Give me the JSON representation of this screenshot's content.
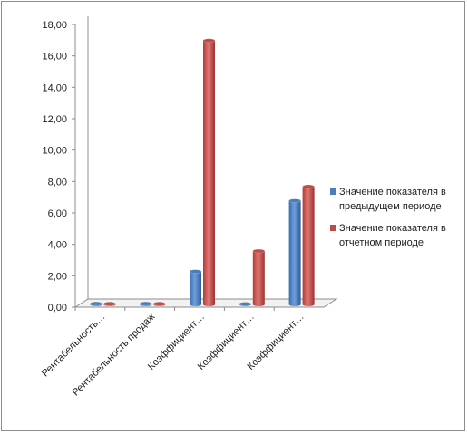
{
  "chart_data": {
    "type": "bar",
    "title": "",
    "xlabel": "",
    "ylabel": "",
    "ylim": [
      0,
      18
    ],
    "yticks": [
      "0,00",
      "2,00",
      "4,00",
      "6,00",
      "8,00",
      "10,00",
      "12,00",
      "14,00",
      "16,00",
      "18,00"
    ],
    "grid": false,
    "legend_position": "right",
    "categories": [
      "Рентабельность…",
      "Рентабельность продаж",
      "Коэффициент…",
      "Коэффициент…",
      "Коэффициент…"
    ],
    "series": [
      {
        "name": "Значение показателя в предыдущем периоде",
        "legend_lines": [
          "Значение показателя в",
          "предыдущем периоде"
        ],
        "color": "#4a7ebb",
        "values": [
          0.05,
          0.05,
          2.1,
          0.03,
          6.6
        ]
      },
      {
        "name": "Значение показателя в отчетном периоде",
        "legend_lines": [
          "Значение показателя в",
          "отчетном периоде"
        ],
        "color": "#be4b48",
        "values": [
          0.04,
          0.04,
          16.8,
          3.4,
          7.5
        ]
      }
    ]
  }
}
